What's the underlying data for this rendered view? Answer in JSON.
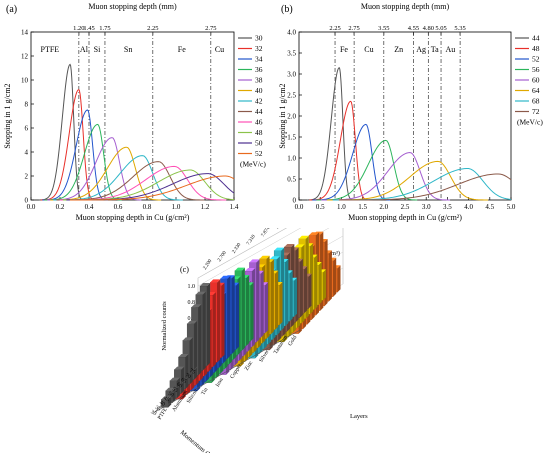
{
  "panels": {
    "a": {
      "label": "(a)",
      "top_xlabel": "Muon stopping depth (mm)",
      "xlabel": "Muon stopping depth in Cu (g/cm²)",
      "ylabel": "Stopping in 1 g/cm2",
      "legend_unit": "(MeV/c)"
    },
    "b": {
      "label": "(b)",
      "top_xlabel": "Muon stopping depth (mm)",
      "xlabel": "Muon stopping depth in Cu (g/cm²)",
      "ylabel": "Stopping in 1 g/cm2",
      "legend_unit": "(MeV/c)"
    },
    "c": {
      "label": "(c)",
      "zlabel": "Normalized counts",
      "ylabel": "Momentum (MeV/c)",
      "xlabel": "Layers",
      "density_label": "Mass density (g/cm³)"
    }
  },
  "chart_data": [
    {
      "id": "a",
      "type": "line",
      "xlim": [
        0,
        1.4
      ],
      "ylim": [
        0,
        14
      ],
      "xticks": [
        0.0,
        0.2,
        0.4,
        0.6,
        0.8,
        1.0,
        1.2,
        1.4
      ],
      "xtick_labels": [
        "0.0",
        "0.2",
        "0.4",
        "0.6",
        "0.8",
        "1.0",
        "1.2",
        "1.4"
      ],
      "yticks": [
        0,
        2,
        4,
        6,
        8,
        10,
        12,
        14
      ],
      "top_ticks": [
        {
          "x": 0.33,
          "label": "1.20"
        },
        {
          "x": 0.4,
          "label": "1.45"
        },
        {
          "x": 0.51,
          "label": "1.75"
        },
        {
          "x": 0.84,
          "label": "2.25"
        },
        {
          "x": 1.24,
          "label": "2.75"
        }
      ],
      "boundaries": [
        0.33,
        0.4,
        0.51,
        0.84,
        1.24
      ],
      "regions": [
        {
          "x": 0.13,
          "label": "PTFE"
        },
        {
          "x": 0.365,
          "label": "Al"
        },
        {
          "x": 0.455,
          "label": "Si"
        },
        {
          "x": 0.67,
          "label": "Sn"
        },
        {
          "x": 1.04,
          "label": "Fe"
        },
        {
          "x": 1.3,
          "label": "Cu"
        }
      ],
      "series": [
        {
          "name": "30",
          "color": "#555555",
          "peak_x": 0.27,
          "peak_y": 11.3
        },
        {
          "name": "32",
          "color": "#e8302a",
          "peak_x": 0.33,
          "peak_y": 9.2
        },
        {
          "name": "34",
          "color": "#2255cc",
          "peak_x": 0.39,
          "peak_y": 7.5
        },
        {
          "name": "36",
          "color": "#2bb55b",
          "peak_x": 0.46,
          "peak_y": 6.3
        },
        {
          "name": "38",
          "color": "#a55fd0",
          "peak_x": 0.56,
          "peak_y": 5.2
        },
        {
          "name": "40",
          "color": "#e0a800",
          "peak_x": 0.66,
          "peak_y": 4.4
        },
        {
          "name": "42",
          "color": "#2fb7c8",
          "peak_x": 0.77,
          "peak_y": 3.7
        },
        {
          "name": "44",
          "color": "#8b5a4a",
          "peak_x": 0.88,
          "peak_y": 3.2
        },
        {
          "name": "46",
          "color": "#ff4fb5",
          "peak_x": 0.99,
          "peak_y": 2.8
        },
        {
          "name": "48",
          "color": "#8bc34a",
          "peak_x": 1.1,
          "peak_y": 2.5
        },
        {
          "name": "50",
          "color": "#4d2f8f",
          "peak_x": 1.22,
          "peak_y": 2.2
        },
        {
          "name": "52",
          "color": "#e86a1e",
          "peak_x": 1.34,
          "peak_y": 2.0
        }
      ]
    },
    {
      "id": "b",
      "type": "line",
      "xlim": [
        0,
        5
      ],
      "ylim": [
        0,
        4
      ],
      "xticks": [
        0,
        0.5,
        1,
        1.5,
        2,
        2.5,
        3,
        3.5,
        4,
        4.5,
        5
      ],
      "xtick_labels": [
        "0.0",
        "0.5",
        "1.0",
        "1.5",
        "2.0",
        "2.5",
        "3.0",
        "3.5",
        "4.0",
        "4.5",
        "5.0"
      ],
      "yticks": [
        0,
        0.5,
        1,
        1.5,
        2,
        2.5,
        3,
        3.5,
        4
      ],
      "ytick_labels": [
        "0",
        "0.5",
        "1.0",
        "1.5",
        "2.0",
        "2.5",
        "3.0",
        "3.5",
        "4.0"
      ],
      "top_ticks": [
        {
          "x": 0.85,
          "label": "2.25"
        },
        {
          "x": 1.3,
          "label": "2.75"
        },
        {
          "x": 2.0,
          "label": "3.55"
        },
        {
          "x": 2.7,
          "label": "4.55"
        },
        {
          "x": 3.05,
          "label": "4.80"
        },
        {
          "x": 3.35,
          "label": "5.05"
        },
        {
          "x": 3.8,
          "label": "5.35"
        }
      ],
      "boundaries": [
        0.85,
        1.3,
        2.0,
        2.7,
        3.05,
        3.35,
        3.8
      ],
      "regions": [
        {
          "x": 1.06,
          "label": "Fe"
        },
        {
          "x": 1.65,
          "label": "Cu"
        },
        {
          "x": 2.35,
          "label": "Zn"
        },
        {
          "x": 2.88,
          "label": "Ag"
        },
        {
          "x": 3.2,
          "label": "Ta"
        },
        {
          "x": 3.57,
          "label": "Au"
        }
      ],
      "series": [
        {
          "name": "44",
          "color": "#555555",
          "peak_x": 0.95,
          "peak_y": 3.15
        },
        {
          "name": "48",
          "color": "#e8302a",
          "peak_x": 1.22,
          "peak_y": 2.35
        },
        {
          "name": "52",
          "color": "#2255cc",
          "peak_x": 1.58,
          "peak_y": 1.8
        },
        {
          "name": "56",
          "color": "#2bb55b",
          "peak_x": 2.05,
          "peak_y": 1.42
        },
        {
          "name": "60",
          "color": "#a55fd0",
          "peak_x": 2.62,
          "peak_y": 1.13
        },
        {
          "name": "64",
          "color": "#e0a800",
          "peak_x": 3.28,
          "peak_y": 0.92
        },
        {
          "name": "68",
          "color": "#2fb7c8",
          "peak_x": 3.98,
          "peak_y": 0.75
        },
        {
          "name": "72",
          "color": "#8b5a4a",
          "peak_x": 4.7,
          "peak_y": 0.62
        }
      ]
    },
    {
      "id": "c",
      "type": "bar3d",
      "zticks": [
        0,
        0.2,
        0.4,
        0.6,
        0.8,
        1.0
      ],
      "ztick_labels": [
        "0",
        "0.2",
        "0.4",
        "0.6",
        "0.8",
        "1.0"
      ],
      "layers": [
        "PTFE",
        "Aluminum",
        "Silicon",
        "Tin",
        "Iron",
        "Copper",
        "Zinc",
        "Silver",
        "Tantalum",
        "Gold"
      ],
      "densities": [
        "2.200",
        "2.700",
        "2.330",
        "7.310",
        "7.874",
        "8.960",
        "7.140",
        "10.49",
        "16.65",
        "19.30"
      ],
      "momenta": [
        "75",
        "70",
        "65",
        "60",
        "55",
        "50",
        "45",
        "40",
        "35",
        "30"
      ],
      "series": [
        {
          "color": "#555555",
          "values": [
            1.0,
            0.95,
            0.85,
            0.7,
            0.55,
            0.4,
            0.3,
            0.22,
            0.15,
            0.1
          ]
        },
        {
          "color": "#e8302a",
          "values": [
            0.9,
            1.0,
            0.9,
            0.75,
            0.6,
            0.45,
            0.32,
            0.22,
            0.15,
            0.1
          ]
        },
        {
          "color": "#2255cc",
          "values": [
            0.8,
            0.95,
            1.0,
            0.85,
            0.7,
            0.5,
            0.38,
            0.26,
            0.18,
            0.12
          ]
        },
        {
          "color": "#2bb55b",
          "values": [
            0.7,
            0.85,
            1.0,
            0.95,
            0.8,
            0.6,
            0.45,
            0.3,
            0.2,
            0.12
          ]
        },
        {
          "color": "#a55fd0",
          "values": [
            0.6,
            0.8,
            1.0,
            0.95,
            0.85,
            0.7,
            0.52,
            0.36,
            0.24,
            0.14
          ]
        },
        {
          "color": "#e0a800",
          "values": [
            0.5,
            0.7,
            0.9,
            1.0,
            0.95,
            0.8,
            0.6,
            0.42,
            0.28,
            0.16
          ]
        },
        {
          "color": "#2fb7c8",
          "values": [
            0.45,
            0.6,
            0.8,
            1.0,
            0.95,
            0.85,
            0.7,
            0.5,
            0.32,
            0.2
          ]
        },
        {
          "color": "#8b5a4a",
          "values": [
            0.4,
            0.55,
            0.7,
            0.9,
            1.0,
            0.95,
            0.8,
            0.6,
            0.4,
            0.25
          ]
        },
        {
          "color": "#e0c000",
          "values": [
            0.35,
            0.5,
            0.65,
            0.85,
            1.0,
            0.95,
            0.85,
            0.65,
            0.45,
            0.28
          ]
        },
        {
          "color": "#e86a1e",
          "values": [
            0.3,
            0.45,
            0.6,
            0.8,
            0.95,
            1.0,
            0.9,
            0.7,
            0.5,
            0.3
          ]
        }
      ]
    }
  ]
}
